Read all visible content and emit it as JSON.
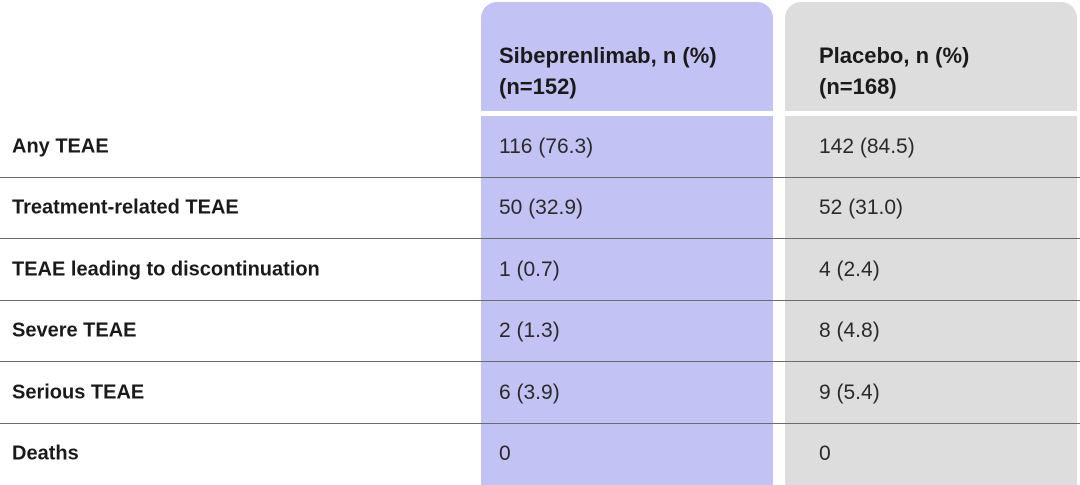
{
  "colors": {
    "sibeprenlimab_column": "#c3c2f4",
    "placebo_column": "#dddddd",
    "row_divider": "#6b6b6b"
  },
  "table": {
    "headers": {
      "sibeprenlimab": [
        "Sibeprenlimab, n (%)",
        "(n=152)"
      ],
      "placebo": [
        "Placebo, n (%)",
        "(n=168)"
      ]
    },
    "rows": [
      {
        "label": "Any TEAE",
        "sibeprenlimab": "116 (76.3)",
        "placebo": "142 (84.5)"
      },
      {
        "label": "Treatment-related TEAE",
        "sibeprenlimab": "50 (32.9)",
        "placebo": "52 (31.0)"
      },
      {
        "label": "TEAE leading to discontinuation",
        "sibeprenlimab": "1 (0.7)",
        "placebo": "4 (2.4)"
      },
      {
        "label": "Severe TEAE",
        "sibeprenlimab": "2 (1.3)",
        "placebo": "8 (4.8)"
      },
      {
        "label": "Serious TEAE",
        "sibeprenlimab": "6 (3.9)",
        "placebo": "9 (5.4)"
      },
      {
        "label": "Deaths",
        "sibeprenlimab": "0",
        "placebo": "0"
      }
    ]
  }
}
